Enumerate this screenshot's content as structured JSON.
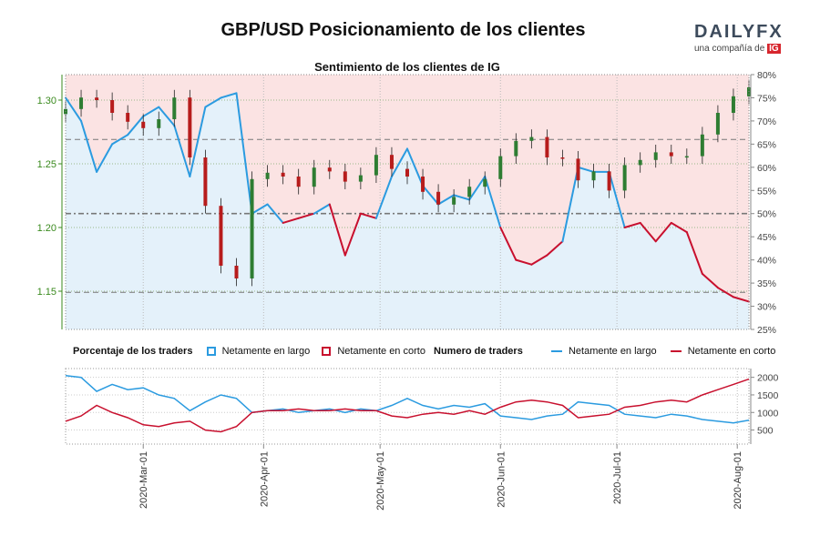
{
  "header": {
    "title": "GBP/USD Posicionamiento de los clientes",
    "subtitle": "Sentimiento de los clientes de IG",
    "logo_main": "DAILY",
    "logo_fx": "FX",
    "logo_sub": "una compañía de",
    "logo_ig": "IG"
  },
  "legend": {
    "pct_title": "Porcentaje de los traders",
    "pct_long": "Netamente en largo",
    "pct_short": "Netamente en corto",
    "num_title": "Numero de traders",
    "num_long": "Netamente en largo",
    "num_short": "Netamente en corto"
  },
  "colors": {
    "long": "#2b9be0",
    "short": "#c8102e",
    "long_fill": "#e4f1fa",
    "short_fill": "#fbe3e3",
    "candle_up": "#2e7d32",
    "candle_down": "#b71c1c",
    "price_axis": "#3a8a1e"
  },
  "chart_data": [
    {
      "type": "candlestick",
      "name": "price",
      "x_dates": [
        "2020-02-10",
        "2020-02-14",
        "2020-02-18",
        "2020-02-22",
        "2020-02-26",
        "2020-03-01",
        "2020-03-05",
        "2020-03-09",
        "2020-03-13",
        "2020-03-17",
        "2020-03-21",
        "2020-03-25",
        "2020-03-29",
        "2020-04-02",
        "2020-04-06",
        "2020-04-10",
        "2020-04-14",
        "2020-04-18",
        "2020-04-22",
        "2020-04-26",
        "2020-04-30",
        "2020-05-04",
        "2020-05-08",
        "2020-05-12",
        "2020-05-16",
        "2020-05-20",
        "2020-05-24",
        "2020-05-28",
        "2020-06-01",
        "2020-06-05",
        "2020-06-09",
        "2020-06-13",
        "2020-06-17",
        "2020-06-21",
        "2020-06-25",
        "2020-06-29",
        "2020-07-03",
        "2020-07-07",
        "2020-07-11",
        "2020-07-15",
        "2020-07-19",
        "2020-07-23",
        "2020-07-27",
        "2020-07-31",
        "2020-08-04"
      ],
      "close": [
        1.293,
        1.302,
        1.3,
        1.29,
        1.283,
        1.278,
        1.285,
        1.302,
        1.255,
        1.217,
        1.17,
        1.16,
        1.238,
        1.243,
        1.24,
        1.232,
        1.247,
        1.244,
        1.236,
        1.241,
        1.257,
        1.246,
        1.24,
        1.228,
        1.218,
        1.224,
        1.232,
        1.238,
        1.256,
        1.268,
        1.271,
        1.255,
        1.254,
        1.237,
        1.244,
        1.229,
        1.249,
        1.253,
        1.259,
        1.256,
        1.256,
        1.273,
        1.29,
        1.303,
        1.31
      ],
      "ylim": [
        1.12,
        1.32
      ],
      "yticks": [
        "1.15",
        "1.20",
        "1.25",
        "1.30"
      ]
    },
    {
      "type": "area",
      "name": "client sentiment",
      "x_dates": [
        "2020-02-10",
        "2020-02-14",
        "2020-02-18",
        "2020-02-22",
        "2020-02-26",
        "2020-03-01",
        "2020-03-05",
        "2020-03-09",
        "2020-03-13",
        "2020-03-17",
        "2020-03-21",
        "2020-03-25",
        "2020-03-29",
        "2020-04-02",
        "2020-04-06",
        "2020-04-10",
        "2020-04-14",
        "2020-04-18",
        "2020-04-22",
        "2020-04-26",
        "2020-04-30",
        "2020-05-04",
        "2020-05-08",
        "2020-05-12",
        "2020-05-16",
        "2020-05-20",
        "2020-05-24",
        "2020-05-28",
        "2020-06-01",
        "2020-06-05",
        "2020-06-09",
        "2020-06-13",
        "2020-06-17",
        "2020-06-21",
        "2020-06-25",
        "2020-06-29",
        "2020-07-03",
        "2020-07-07",
        "2020-07-11",
        "2020-07-15",
        "2020-07-19",
        "2020-07-23",
        "2020-07-27",
        "2020-07-31",
        "2020-08-04"
      ],
      "net_long_pct": [
        75,
        70,
        59,
        65,
        67,
        71,
        73,
        69,
        58,
        73,
        75,
        76,
        50,
        52,
        48,
        49,
        50,
        52,
        41,
        50,
        49,
        58,
        64,
        56,
        52,
        54,
        53,
        58,
        47,
        40,
        39,
        41,
        44,
        60,
        59,
        59,
        47,
        48,
        44,
        48,
        46,
        37,
        34,
        32,
        31
      ],
      "ylim": [
        25,
        80
      ],
      "yticks": [
        "25%",
        "30%",
        "35%",
        "40%",
        "45%",
        "50%",
        "55%",
        "60%",
        "65%",
        "70%",
        "75%",
        "80%"
      ],
      "reference_lines": [
        66,
        50,
        33
      ]
    },
    {
      "type": "line",
      "name": "number of traders",
      "x_dates": [
        "2020-02-10",
        "2020-02-14",
        "2020-02-18",
        "2020-02-22",
        "2020-02-26",
        "2020-03-01",
        "2020-03-05",
        "2020-03-09",
        "2020-03-13",
        "2020-03-17",
        "2020-03-21",
        "2020-03-25",
        "2020-03-29",
        "2020-04-02",
        "2020-04-06",
        "2020-04-10",
        "2020-04-14",
        "2020-04-18",
        "2020-04-22",
        "2020-04-26",
        "2020-04-30",
        "2020-05-04",
        "2020-05-08",
        "2020-05-12",
        "2020-05-16",
        "2020-05-20",
        "2020-05-24",
        "2020-05-28",
        "2020-06-01",
        "2020-06-05",
        "2020-06-09",
        "2020-06-13",
        "2020-06-17",
        "2020-06-21",
        "2020-06-25",
        "2020-06-29",
        "2020-07-03",
        "2020-07-07",
        "2020-07-11",
        "2020-07-15",
        "2020-07-19",
        "2020-07-23",
        "2020-07-27",
        "2020-07-31",
        "2020-08-04"
      ],
      "series": [
        {
          "name": "Netamente en largo",
          "values": [
            2050,
            2000,
            1600,
            1800,
            1650,
            1700,
            1500,
            1400,
            1050,
            1300,
            1500,
            1400,
            1000,
            1050,
            1100,
            1000,
            1050,
            1100,
            1000,
            1100,
            1050,
            1200,
            1400,
            1200,
            1100,
            1200,
            1150,
            1250,
            900,
            850,
            800,
            900,
            950,
            1300,
            1250,
            1200,
            950,
            900,
            850,
            950,
            900,
            800,
            750,
            700,
            780
          ]
        },
        {
          "name": "Netamente en corto",
          "values": [
            750,
            900,
            1200,
            1000,
            850,
            650,
            600,
            700,
            750,
            500,
            450,
            600,
            1000,
            1050,
            1050,
            1100,
            1050,
            1050,
            1100,
            1050,
            1050,
            900,
            850,
            950,
            1000,
            950,
            1050,
            950,
            1150,
            1300,
            1350,
            1300,
            1200,
            850,
            900,
            950,
            1150,
            1200,
            1300,
            1350,
            1300,
            1500,
            1650,
            1800,
            1950
          ]
        }
      ],
      "ylim": [
        100,
        2250
      ],
      "yticks": [
        "500",
        "1000",
        "1500",
        "2000"
      ]
    }
  ],
  "x_axis_labels": [
    "2020-Mar-01",
    "2020-Apr-01",
    "2020-May-01",
    "2020-Jun-01",
    "2020-Jul-01",
    "2020-Aug-01"
  ]
}
